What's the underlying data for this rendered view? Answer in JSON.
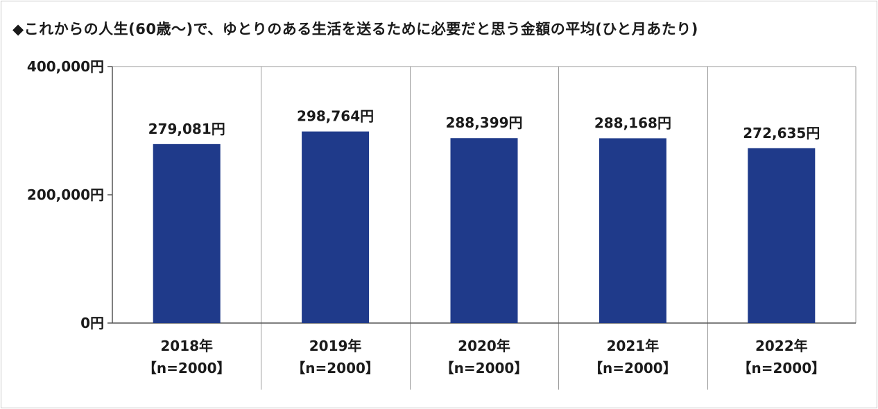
{
  "title": "◆これからの人生(60歳〜)で、ゆとりのある生活を送るために必要だと思う金額の平均(ひと月あたり)",
  "colors": {
    "bar": "#1f3a8a",
    "grid": "#9a9a9a",
    "axis": "#555555",
    "text": "#1a1a1a"
  },
  "chart_data": {
    "type": "bar",
    "title": "◆これからの人生(60歳〜)で、ゆとりのある生活を送るために必要だと思う金額の平均(ひと月あたり)",
    "categories": [
      "2018年",
      "2019年",
      "2020年",
      "2021年",
      "2022年"
    ],
    "category_sublabels": [
      "【n=2000】",
      "【n=2000】",
      "【n=2000】",
      "【n=2000】",
      "【n=2000】"
    ],
    "values": [
      279081,
      298764,
      288399,
      288168,
      272635
    ],
    "data_labels": [
      "279,081円",
      "298,764円",
      "288,399円",
      "288,168円",
      "272,635円"
    ],
    "ylim": [
      0,
      400000
    ],
    "yticks": [
      0,
      200000,
      400000
    ],
    "ytick_labels": [
      "0円",
      "200,000円",
      "400,000円"
    ],
    "xlabel": "",
    "ylabel": "",
    "grid": "vertical category separators",
    "legend": "none"
  }
}
